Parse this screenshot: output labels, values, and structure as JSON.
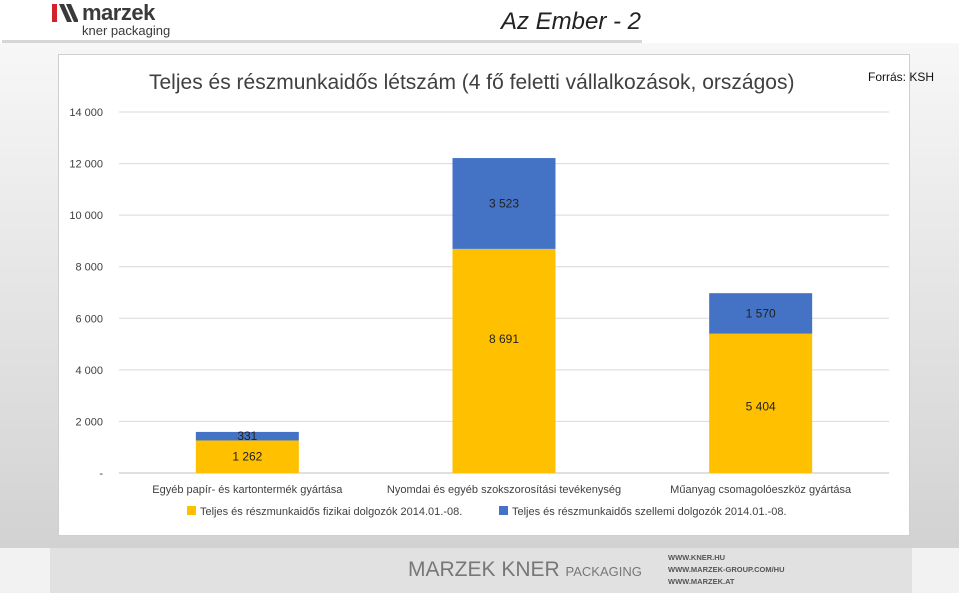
{
  "header": {
    "logo_word": "marzek",
    "logo_sub": "kner packaging",
    "slide_title": "Az Ember - 2"
  },
  "source": "Forrás: KSH",
  "colors": {
    "series1": "#FFC000",
    "series2": "#4472C4",
    "gridline": "#d9d9d9",
    "axis_text": "#404040"
  },
  "chart_data": {
    "type": "bar",
    "stacked": true,
    "title": "Teljes és részmunkaidős létszám (4 fő feletti vállalkozások, országos)",
    "categories": [
      "Egyéb papír- és kartontermék gyártása",
      "Nyomdai és egyéb szokszorosítási tevékenység",
      "Műanyag csomagolóeszköz gyártása"
    ],
    "series": [
      {
        "name": "Teljes és részmunkaidős fizikai dolgozók 2014.01.-08.",
        "values": [
          1262,
          8691,
          5404
        ],
        "labels": [
          "1 262",
          "8 691",
          "5 404"
        ]
      },
      {
        "name": "Teljes és részmunkaidős szellemi dolgozók 2014.01.-08.",
        "values": [
          331,
          3523,
          1570
        ],
        "labels": [
          "331",
          "3 523",
          "1 570"
        ]
      }
    ],
    "ylim": [
      0,
      14000
    ],
    "yticks": [
      0,
      2000,
      4000,
      6000,
      8000,
      10000,
      12000,
      14000
    ],
    "ytick_labels": [
      "-",
      "2 000",
      "4 000",
      "6 000",
      "8 000",
      "10 000",
      "12 000",
      "14 000"
    ],
    "grid": true,
    "legend_position": "bottom"
  },
  "footer": {
    "brand_main": "MARZEK KNER",
    "brand_small": "PACKAGING",
    "links": [
      "WWW.KNER.HU",
      "WWW.MARZEK-GROUP.COM/HU",
      "WWW.MARZEK.AT"
    ]
  }
}
